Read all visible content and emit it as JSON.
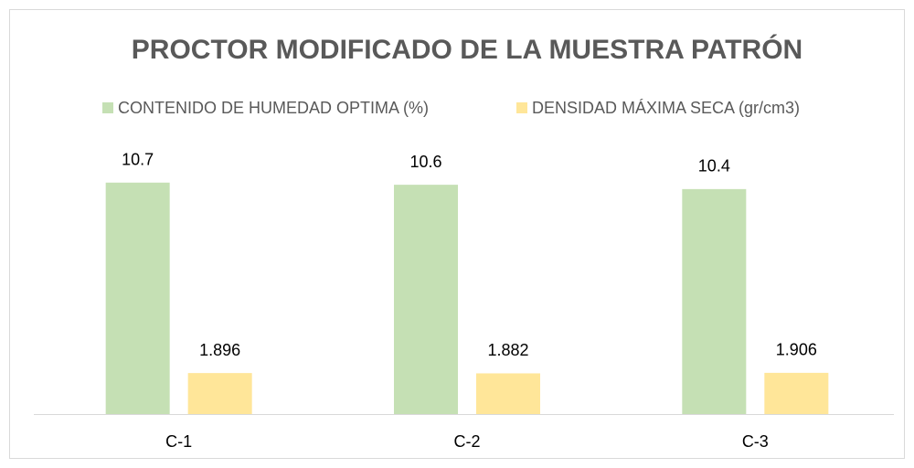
{
  "chart_data": {
    "type": "bar",
    "title": "PROCTOR MODIFICADO DE LA MUESTRA PATRÓN",
    "categories": [
      "C-1",
      "C-2",
      "C-3"
    ],
    "series": [
      {
        "name": "CONTENIDO DE HUMEDAD OPTIMA (%)",
        "color": "#c5e0b4",
        "values": [
          10.7,
          10.6,
          10.4
        ]
      },
      {
        "name": "DENSIDAD MÁXIMA SECA (gr/cm3)",
        "color": "#ffe699",
        "values": [
          1.896,
          1.882,
          1.906
        ]
      }
    ],
    "ylim": [
      0,
      12
    ],
    "legend": "top"
  }
}
